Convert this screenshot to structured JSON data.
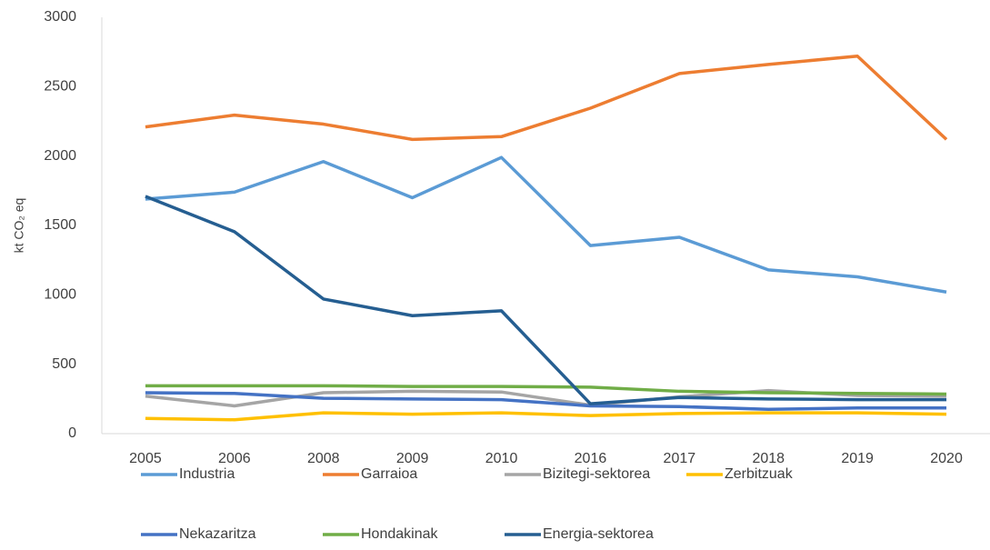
{
  "chart_data": {
    "type": "line",
    "y_label": "kt CO₂ eq",
    "categories": [
      "2005",
      "2006",
      "2008",
      "2009",
      "2010",
      "2016",
      "2017",
      "2018",
      "2019",
      "2020"
    ],
    "series": [
      {
        "name": "Industria",
        "color": "#5b9bd5",
        "values": [
          1690,
          1740,
          1960,
          1700,
          1990,
          1355,
          1415,
          1180,
          1130,
          1020
        ]
      },
      {
        "name": "Garraioa",
        "color": "#ed7d31",
        "values": [
          2210,
          2295,
          2230,
          2120,
          2140,
          2345,
          2595,
          2660,
          2720,
          2120
        ]
      },
      {
        "name": "Bizitegi-sektorea",
        "color": "#a5a5a5",
        "values": [
          270,
          200,
          295,
          305,
          300,
          205,
          265,
          310,
          275,
          270
        ]
      },
      {
        "name": "Zerbitzuak",
        "color": "#ffc000",
        "values": [
          110,
          100,
          150,
          140,
          150,
          130,
          145,
          150,
          150,
          140
        ]
      },
      {
        "name": "Nekazaritza",
        "color": "#4472c4",
        "values": [
          295,
          290,
          255,
          250,
          245,
          200,
          195,
          175,
          185,
          185
        ]
      },
      {
        "name": "Hondakinak",
        "color": "#70ad47",
        "values": [
          345,
          345,
          345,
          340,
          340,
          335,
          305,
          295,
          290,
          285
        ]
      },
      {
        "name": "Energia-sektorea",
        "color": "#255e91",
        "values": [
          1710,
          1455,
          970,
          850,
          885,
          215,
          260,
          250,
          245,
          245
        ]
      }
    ],
    "ylim": [
      0,
      3000
    ],
    "yticks": [
      0,
      500,
      1000,
      1500,
      2000,
      2500,
      3000
    ],
    "grid": false
  }
}
